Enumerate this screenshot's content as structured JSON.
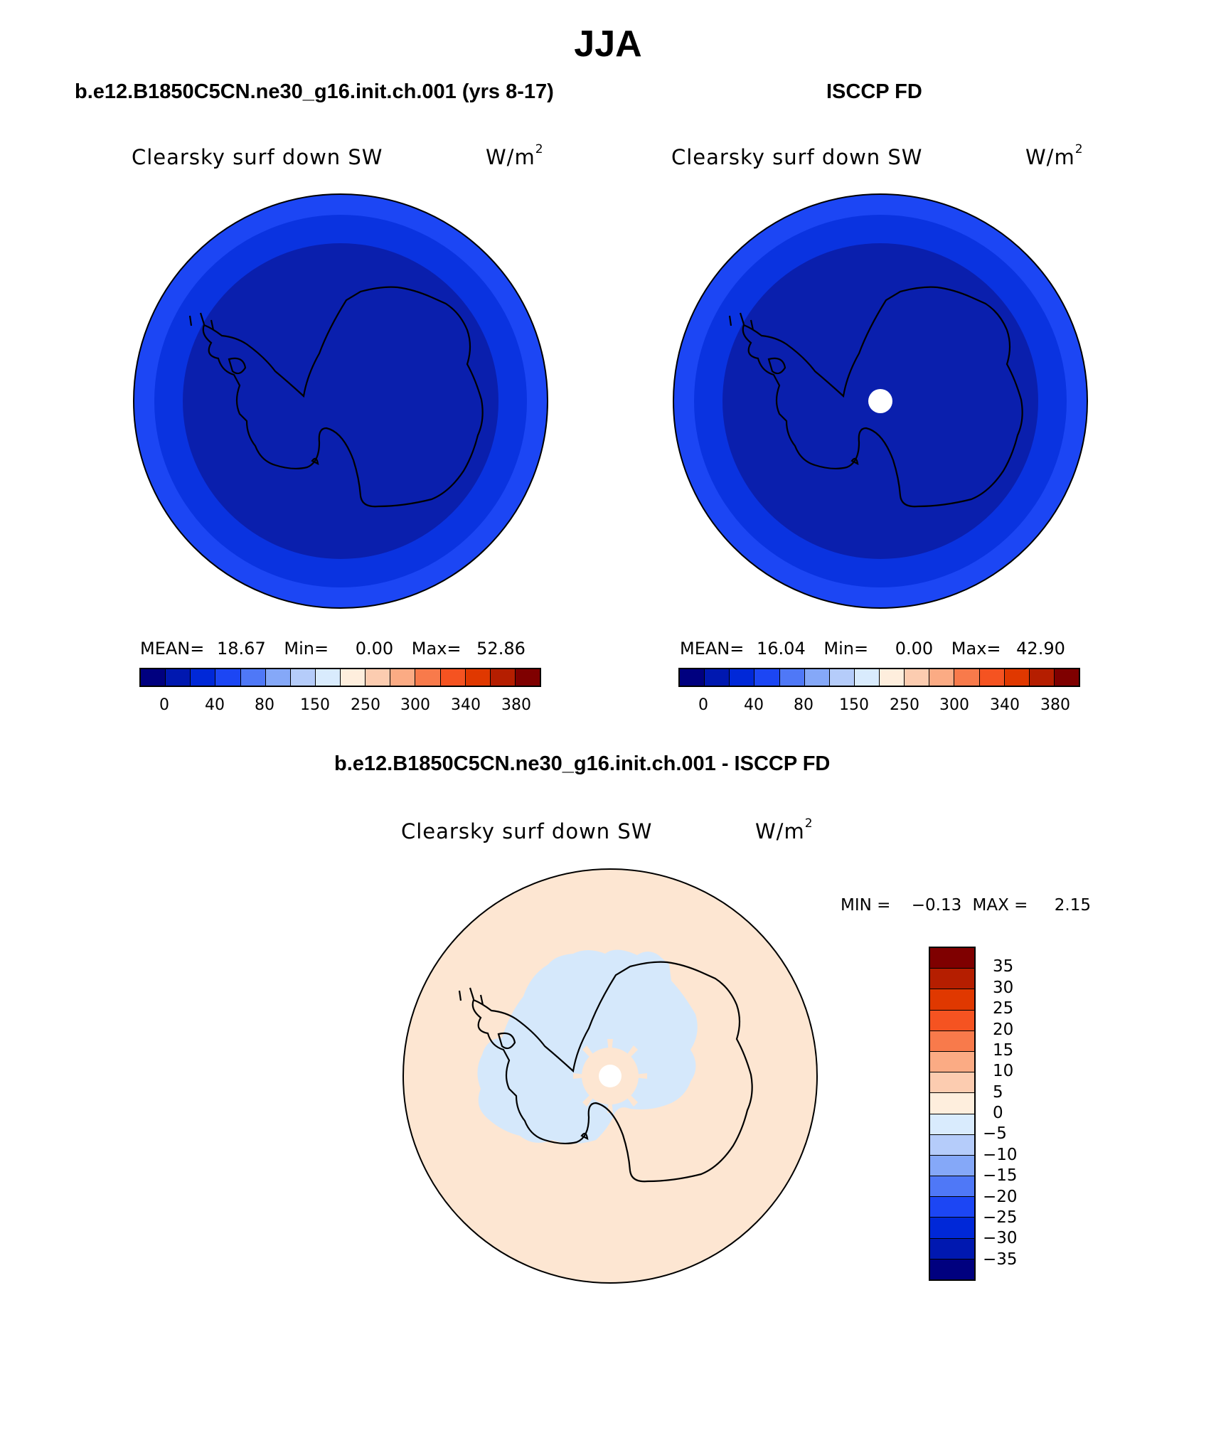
{
  "figure": {
    "title": "JJA"
  },
  "panels": {
    "model": {
      "title": "b.e12.B1850C5CN.ne30_g16.init.ch.001 (yrs 8-17)",
      "variable": "Clearsky surf down SW",
      "units_base": "W/m",
      "units_exp": "2",
      "mean_label": "MEAN=",
      "mean_value": "18.67",
      "min_label": "Min=",
      "min_value": "0.00",
      "max_label": "Max=",
      "max_value": "52.86",
      "bands": [
        {
          "range": "≥ 40",
          "color": "#0022cc"
        },
        {
          "range": "20–40",
          "color": "#0a33e0"
        },
        {
          "range": "< 20",
          "color": "#0a1fad"
        }
      ]
    },
    "obs": {
      "title": "ISCCP FD",
      "variable": "Clearsky surf down SW",
      "units_base": "W/m",
      "units_exp": "2",
      "mean_label": "MEAN=",
      "mean_value": "16.04",
      "min_label": "Min=",
      "min_value": "0.00",
      "max_label": "Max=",
      "max_value": "42.90",
      "missing_color": "#ffffff"
    },
    "diff": {
      "title": "b.e12.B1850C5CN.ne30_g16.init.ch.001 - ISCCP FD",
      "variable": "Clearsky surf down SW",
      "units_base": "W/m",
      "units_exp": "2",
      "min_label": "MIN =",
      "min_value": "−0.13",
      "max_label": "MAX =",
      "max_value": "2.15",
      "positive_color": "#fde6d2",
      "negative_color": "#d5e8fb"
    }
  },
  "colorbars": {
    "absolute": {
      "ticks": [
        "0",
        "40",
        "80",
        "150",
        "250",
        "300",
        "340",
        "380"
      ],
      "colors": [
        "#00007f",
        "#0018b0",
        "#0028d8",
        "#1c46f4",
        "#4f78f7",
        "#85a8f8",
        "#b5ccfa",
        "#d9ebfd",
        "#feeedd",
        "#fcccb0",
        "#fbab84",
        "#f87a4b",
        "#f55321",
        "#e03800",
        "#b51e00",
        "#7f0000"
      ]
    },
    "difference": {
      "ticks": [
        "35",
        "30",
        "25",
        "20",
        "15",
        "10",
        "5",
        "0",
        "−5",
        "−10",
        "−15",
        "−20",
        "−25",
        "−30",
        "−35"
      ],
      "colors_top_to_bottom": [
        "#7f0000",
        "#b51e00",
        "#e03800",
        "#f55321",
        "#f87a4b",
        "#fbab84",
        "#fcccb0",
        "#feeedd",
        "#d9ebfd",
        "#b5ccfa",
        "#85a8f8",
        "#4f78f7",
        "#1c46f4",
        "#0028d8",
        "#0018b0",
        "#00007f"
      ]
    }
  }
}
